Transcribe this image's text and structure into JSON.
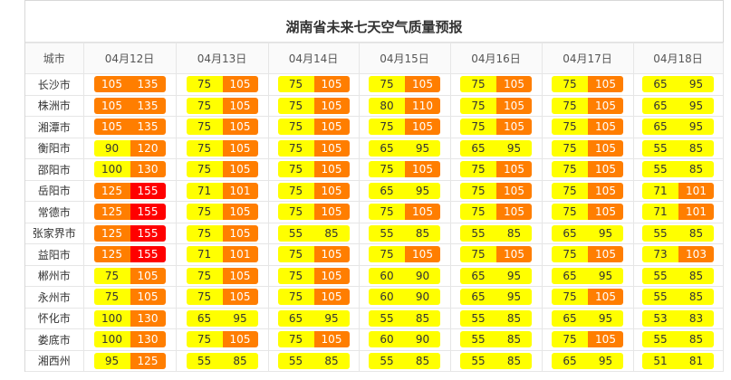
{
  "title": "湖南省未来七天空气质量预报",
  "header": {
    "city_label": "城市",
    "dates": [
      "04月12日",
      "04月13日",
      "04月14日",
      "04月15日",
      "04月16日",
      "04月17日",
      "04月18日"
    ]
  },
  "colors": {
    "yellow": "#ffff00",
    "orange": "#ff7e00",
    "red": "#ff0000"
  },
  "rows": [
    {
      "city": "长沙市",
      "cells": [
        {
          "lo": "105",
          "hi": "135",
          "c1": "orange",
          "c2": "orange"
        },
        {
          "lo": "75",
          "hi": "105",
          "c1": "yellow",
          "c2": "orange"
        },
        {
          "lo": "75",
          "hi": "105",
          "c1": "yellow",
          "c2": "orange"
        },
        {
          "lo": "75",
          "hi": "105",
          "c1": "yellow",
          "c2": "orange"
        },
        {
          "lo": "75",
          "hi": "105",
          "c1": "yellow",
          "c2": "orange"
        },
        {
          "lo": "75",
          "hi": "105",
          "c1": "yellow",
          "c2": "orange"
        },
        {
          "lo": "65",
          "hi": "95",
          "c1": "yellow",
          "c2": "yellow"
        }
      ]
    },
    {
      "city": "株洲市",
      "cells": [
        {
          "lo": "105",
          "hi": "135",
          "c1": "orange",
          "c2": "orange"
        },
        {
          "lo": "75",
          "hi": "105",
          "c1": "yellow",
          "c2": "orange"
        },
        {
          "lo": "75",
          "hi": "105",
          "c1": "yellow",
          "c2": "orange"
        },
        {
          "lo": "80",
          "hi": "110",
          "c1": "yellow",
          "c2": "orange"
        },
        {
          "lo": "75",
          "hi": "105",
          "c1": "yellow",
          "c2": "orange"
        },
        {
          "lo": "75",
          "hi": "105",
          "c1": "yellow",
          "c2": "orange"
        },
        {
          "lo": "65",
          "hi": "95",
          "c1": "yellow",
          "c2": "yellow"
        }
      ]
    },
    {
      "city": "湘潭市",
      "cells": [
        {
          "lo": "105",
          "hi": "135",
          "c1": "orange",
          "c2": "orange"
        },
        {
          "lo": "75",
          "hi": "105",
          "c1": "yellow",
          "c2": "orange"
        },
        {
          "lo": "75",
          "hi": "105",
          "c1": "yellow",
          "c2": "orange"
        },
        {
          "lo": "75",
          "hi": "105",
          "c1": "yellow",
          "c2": "orange"
        },
        {
          "lo": "75",
          "hi": "105",
          "c1": "yellow",
          "c2": "orange"
        },
        {
          "lo": "75",
          "hi": "105",
          "c1": "yellow",
          "c2": "orange"
        },
        {
          "lo": "65",
          "hi": "95",
          "c1": "yellow",
          "c2": "yellow"
        }
      ]
    },
    {
      "city": "衡阳市",
      "cells": [
        {
          "lo": "90",
          "hi": "120",
          "c1": "yellow",
          "c2": "orange"
        },
        {
          "lo": "75",
          "hi": "105",
          "c1": "yellow",
          "c2": "orange"
        },
        {
          "lo": "75",
          "hi": "105",
          "c1": "yellow",
          "c2": "orange"
        },
        {
          "lo": "65",
          "hi": "95",
          "c1": "yellow",
          "c2": "yellow"
        },
        {
          "lo": "65",
          "hi": "95",
          "c1": "yellow",
          "c2": "yellow"
        },
        {
          "lo": "75",
          "hi": "105",
          "c1": "yellow",
          "c2": "orange"
        },
        {
          "lo": "55",
          "hi": "85",
          "c1": "yellow",
          "c2": "yellow"
        }
      ]
    },
    {
      "city": "邵阳市",
      "cells": [
        {
          "lo": "100",
          "hi": "130",
          "c1": "yellow",
          "c2": "orange"
        },
        {
          "lo": "75",
          "hi": "105",
          "c1": "yellow",
          "c2": "orange"
        },
        {
          "lo": "75",
          "hi": "105",
          "c1": "yellow",
          "c2": "orange"
        },
        {
          "lo": "75",
          "hi": "105",
          "c1": "yellow",
          "c2": "orange"
        },
        {
          "lo": "75",
          "hi": "105",
          "c1": "yellow",
          "c2": "orange"
        },
        {
          "lo": "75",
          "hi": "105",
          "c1": "yellow",
          "c2": "orange"
        },
        {
          "lo": "55",
          "hi": "85",
          "c1": "yellow",
          "c2": "yellow"
        }
      ]
    },
    {
      "city": "岳阳市",
      "cells": [
        {
          "lo": "125",
          "hi": "155",
          "c1": "orange",
          "c2": "red"
        },
        {
          "lo": "71",
          "hi": "101",
          "c1": "yellow",
          "c2": "orange"
        },
        {
          "lo": "75",
          "hi": "105",
          "c1": "yellow",
          "c2": "orange"
        },
        {
          "lo": "65",
          "hi": "95",
          "c1": "yellow",
          "c2": "yellow"
        },
        {
          "lo": "75",
          "hi": "105",
          "c1": "yellow",
          "c2": "orange"
        },
        {
          "lo": "75",
          "hi": "105",
          "c1": "yellow",
          "c2": "orange"
        },
        {
          "lo": "71",
          "hi": "101",
          "c1": "yellow",
          "c2": "orange"
        }
      ]
    },
    {
      "city": "常德市",
      "cells": [
        {
          "lo": "125",
          "hi": "155",
          "c1": "orange",
          "c2": "red"
        },
        {
          "lo": "75",
          "hi": "105",
          "c1": "yellow",
          "c2": "orange"
        },
        {
          "lo": "75",
          "hi": "105",
          "c1": "yellow",
          "c2": "orange"
        },
        {
          "lo": "75",
          "hi": "105",
          "c1": "yellow",
          "c2": "orange"
        },
        {
          "lo": "75",
          "hi": "105",
          "c1": "yellow",
          "c2": "orange"
        },
        {
          "lo": "75",
          "hi": "105",
          "c1": "yellow",
          "c2": "orange"
        },
        {
          "lo": "71",
          "hi": "101",
          "c1": "yellow",
          "c2": "orange"
        }
      ]
    },
    {
      "city": "张家界市",
      "cells": [
        {
          "lo": "125",
          "hi": "155",
          "c1": "orange",
          "c2": "red"
        },
        {
          "lo": "75",
          "hi": "105",
          "c1": "yellow",
          "c2": "orange"
        },
        {
          "lo": "55",
          "hi": "85",
          "c1": "yellow",
          "c2": "yellow"
        },
        {
          "lo": "55",
          "hi": "85",
          "c1": "yellow",
          "c2": "yellow"
        },
        {
          "lo": "55",
          "hi": "85",
          "c1": "yellow",
          "c2": "yellow"
        },
        {
          "lo": "65",
          "hi": "95",
          "c1": "yellow",
          "c2": "yellow"
        },
        {
          "lo": "55",
          "hi": "85",
          "c1": "yellow",
          "c2": "yellow"
        }
      ]
    },
    {
      "city": "益阳市",
      "cells": [
        {
          "lo": "125",
          "hi": "155",
          "c1": "orange",
          "c2": "red"
        },
        {
          "lo": "71",
          "hi": "101",
          "c1": "yellow",
          "c2": "orange"
        },
        {
          "lo": "75",
          "hi": "105",
          "c1": "yellow",
          "c2": "orange"
        },
        {
          "lo": "75",
          "hi": "105",
          "c1": "yellow",
          "c2": "orange"
        },
        {
          "lo": "75",
          "hi": "105",
          "c1": "yellow",
          "c2": "orange"
        },
        {
          "lo": "75",
          "hi": "105",
          "c1": "yellow",
          "c2": "orange"
        },
        {
          "lo": "73",
          "hi": "103",
          "c1": "yellow",
          "c2": "orange"
        }
      ]
    },
    {
      "city": "郴州市",
      "cells": [
        {
          "lo": "75",
          "hi": "105",
          "c1": "yellow",
          "c2": "orange"
        },
        {
          "lo": "75",
          "hi": "105",
          "c1": "yellow",
          "c2": "orange"
        },
        {
          "lo": "75",
          "hi": "105",
          "c1": "yellow",
          "c2": "orange"
        },
        {
          "lo": "60",
          "hi": "90",
          "c1": "yellow",
          "c2": "yellow"
        },
        {
          "lo": "65",
          "hi": "95",
          "c1": "yellow",
          "c2": "yellow"
        },
        {
          "lo": "65",
          "hi": "95",
          "c1": "yellow",
          "c2": "yellow"
        },
        {
          "lo": "55",
          "hi": "85",
          "c1": "yellow",
          "c2": "yellow"
        }
      ]
    },
    {
      "city": "永州市",
      "cells": [
        {
          "lo": "75",
          "hi": "105",
          "c1": "yellow",
          "c2": "orange"
        },
        {
          "lo": "75",
          "hi": "105",
          "c1": "yellow",
          "c2": "orange"
        },
        {
          "lo": "75",
          "hi": "105",
          "c1": "yellow",
          "c2": "orange"
        },
        {
          "lo": "60",
          "hi": "90",
          "c1": "yellow",
          "c2": "yellow"
        },
        {
          "lo": "65",
          "hi": "95",
          "c1": "yellow",
          "c2": "yellow"
        },
        {
          "lo": "75",
          "hi": "105",
          "c1": "yellow",
          "c2": "orange"
        },
        {
          "lo": "55",
          "hi": "85",
          "c1": "yellow",
          "c2": "yellow"
        }
      ]
    },
    {
      "city": "怀化市",
      "cells": [
        {
          "lo": "100",
          "hi": "130",
          "c1": "yellow",
          "c2": "orange"
        },
        {
          "lo": "65",
          "hi": "95",
          "c1": "yellow",
          "c2": "yellow"
        },
        {
          "lo": "65",
          "hi": "95",
          "c1": "yellow",
          "c2": "yellow"
        },
        {
          "lo": "55",
          "hi": "85",
          "c1": "yellow",
          "c2": "yellow"
        },
        {
          "lo": "55",
          "hi": "85",
          "c1": "yellow",
          "c2": "yellow"
        },
        {
          "lo": "65",
          "hi": "95",
          "c1": "yellow",
          "c2": "yellow"
        },
        {
          "lo": "53",
          "hi": "83",
          "c1": "yellow",
          "c2": "yellow"
        }
      ]
    },
    {
      "city": "娄底市",
      "cells": [
        {
          "lo": "100",
          "hi": "130",
          "c1": "yellow",
          "c2": "orange"
        },
        {
          "lo": "75",
          "hi": "105",
          "c1": "yellow",
          "c2": "orange"
        },
        {
          "lo": "75",
          "hi": "105",
          "c1": "yellow",
          "c2": "orange"
        },
        {
          "lo": "60",
          "hi": "90",
          "c1": "yellow",
          "c2": "yellow"
        },
        {
          "lo": "55",
          "hi": "85",
          "c1": "yellow",
          "c2": "yellow"
        },
        {
          "lo": "75",
          "hi": "105",
          "c1": "yellow",
          "c2": "orange"
        },
        {
          "lo": "55",
          "hi": "85",
          "c1": "yellow",
          "c2": "yellow"
        }
      ]
    },
    {
      "city": "湘西州",
      "cells": [
        {
          "lo": "95",
          "hi": "125",
          "c1": "yellow",
          "c2": "orange"
        },
        {
          "lo": "55",
          "hi": "85",
          "c1": "yellow",
          "c2": "yellow"
        },
        {
          "lo": "55",
          "hi": "85",
          "c1": "yellow",
          "c2": "yellow"
        },
        {
          "lo": "55",
          "hi": "85",
          "c1": "yellow",
          "c2": "yellow"
        },
        {
          "lo": "55",
          "hi": "85",
          "c1": "yellow",
          "c2": "yellow"
        },
        {
          "lo": "65",
          "hi": "95",
          "c1": "yellow",
          "c2": "yellow"
        },
        {
          "lo": "51",
          "hi": "81",
          "c1": "yellow",
          "c2": "yellow"
        }
      ]
    }
  ]
}
